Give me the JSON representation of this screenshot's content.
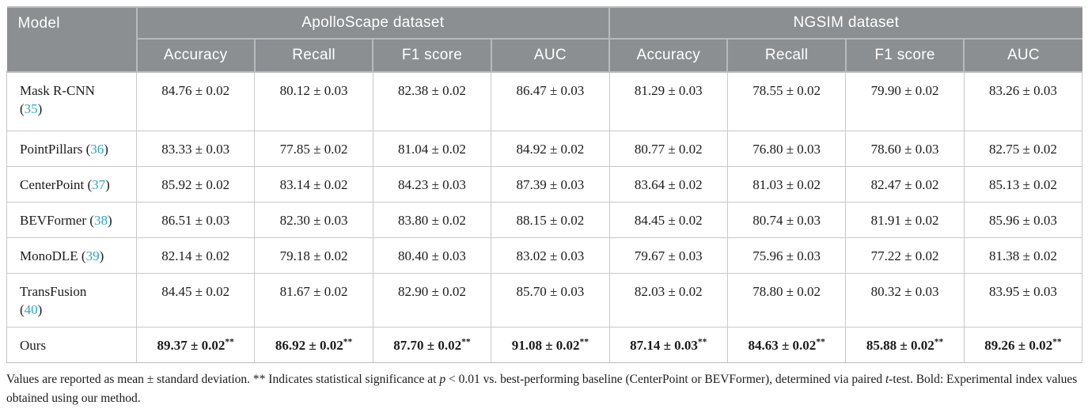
{
  "colors": {
    "header_bg": "#8B8F92",
    "header_line": "#B7BABC",
    "citation": "#2BA6C6",
    "body_border": "#C9C9C9"
  },
  "table": {
    "header": {
      "model_label": "Model",
      "groups": [
        {
          "label": "ApolloScape dataset"
        },
        {
          "label": "NGSIM dataset"
        }
      ],
      "metrics": [
        "Accuracy",
        "Recall",
        "F1 score",
        "AUC"
      ]
    },
    "rows": [
      {
        "model": {
          "name": "Mask R-CNN",
          "ref": "35",
          "line_break": true
        },
        "apolloscape": [
          "84.76 ± 0.02",
          "80.12 ± 0.03",
          "82.38 ± 0.02",
          "86.47 ± 0.03"
        ],
        "ngsim": [
          "81.29 ± 0.03",
          "78.55 ± 0.02",
          "79.90 ± 0.02",
          "83.26 ± 0.03"
        ],
        "bold": false,
        "sup": ""
      },
      {
        "model": {
          "name": "PointPillars",
          "ref": "36",
          "line_break": false
        },
        "apolloscape": [
          "83.33 ± 0.03",
          "77.85 ± 0.02",
          "81.04 ± 0.02",
          "84.92 ± 0.02"
        ],
        "ngsim": [
          "80.77 ± 0.02",
          "76.80 ± 0.03",
          "78.60 ± 0.03",
          "82.75 ± 0.02"
        ],
        "bold": false,
        "sup": ""
      },
      {
        "model": {
          "name": "CenterPoint",
          "ref": "37",
          "line_break": false
        },
        "apolloscape": [
          "85.92 ± 0.02",
          "83.14 ± 0.02",
          "84.23 ± 0.03",
          "87.39 ± 0.03"
        ],
        "ngsim": [
          "83.64 ± 0.02",
          "81.03 ± 0.02",
          "82.47 ± 0.02",
          "85.13 ± 0.02"
        ],
        "bold": false,
        "sup": ""
      },
      {
        "model": {
          "name": "BEVFormer",
          "ref": "38",
          "line_break": false
        },
        "apolloscape": [
          "86.51 ± 0.03",
          "82.30 ± 0.03",
          "83.80 ± 0.02",
          "88.15 ± 0.02"
        ],
        "ngsim": [
          "84.45 ± 0.02",
          "80.74 ± 0.03",
          "81.91 ± 0.02",
          "85.96 ± 0.03"
        ],
        "bold": false,
        "sup": ""
      },
      {
        "model": {
          "name": "MonoDLE",
          "ref": "39",
          "line_break": false
        },
        "apolloscape": [
          "82.14 ± 0.02",
          "79.18 ± 0.02",
          "80.40 ± 0.03",
          "83.02 ± 0.03"
        ],
        "ngsim": [
          "79.67 ± 0.03",
          "75.96 ± 0.03",
          "77.22 ± 0.02",
          "81.38 ± 0.02"
        ],
        "bold": false,
        "sup": ""
      },
      {
        "model": {
          "name": "TransFusion",
          "ref": "40",
          "line_break": true
        },
        "apolloscape": [
          "84.45 ± 0.02",
          "81.67 ± 0.02",
          "82.90 ± 0.02",
          "85.70 ± 0.03"
        ],
        "ngsim": [
          "82.03 ± 0.02",
          "78.80 ± 0.02",
          "80.32 ± 0.03",
          "83.95 ± 0.03"
        ],
        "bold": false,
        "sup": ""
      },
      {
        "model": {
          "name": "Ours",
          "ref": "",
          "line_break": false
        },
        "apolloscape": [
          "89.37 ± 0.02",
          "86.92 ± 0.02",
          "87.70 ± 0.02",
          "91.08 ± 0.02"
        ],
        "ngsim": [
          "87.14 ± 0.03",
          "84.63 ± 0.02",
          "85.88 ± 0.02",
          "89.26 ± 0.02"
        ],
        "bold": true,
        "sup": "**"
      }
    ]
  },
  "footnote": {
    "parts": [
      {
        "t": "Values are reported as mean ± standard deviation. ** Indicates statistical significance at ",
        "style": "normal"
      },
      {
        "t": "p",
        "style": "italic"
      },
      {
        "t": " < 0.01 vs. best-performing baseline (CenterPoint or BEVFormer), determined via paired ",
        "style": "normal"
      },
      {
        "t": "t",
        "style": "italic"
      },
      {
        "t": "-test. Bold: Experimental index values obtained using our method.",
        "style": "normal"
      }
    ]
  }
}
